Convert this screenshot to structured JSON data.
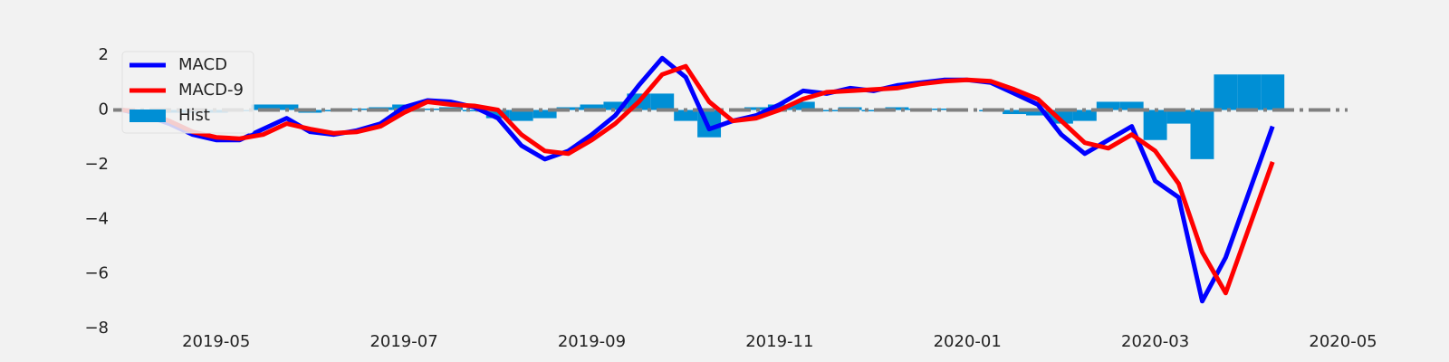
{
  "chart_data": {
    "type": "line",
    "categories": [
      null,
      null,
      null,
      null,
      "2019-05",
      null,
      null,
      null,
      null,
      null,
      null,
      null,
      "2019-07",
      null,
      null,
      null,
      null,
      null,
      null,
      null,
      "2019-09",
      null,
      null,
      null,
      null,
      null,
      null,
      null,
      "2019-11",
      null,
      null,
      null,
      null,
      null,
      null,
      null,
      "2020-01",
      null,
      null,
      null,
      null,
      null,
      null,
      null,
      "2020-03",
      null,
      null,
      null,
      null,
      null,
      null,
      null,
      "2020-05"
    ],
    "series": [
      {
        "name": "MACD",
        "color": "#0000ff",
        "kind": "line",
        "values": [
          0.0,
          -0.2,
          -0.5,
          -0.9,
          -1.1,
          -1.1,
          -0.7,
          -0.3,
          -0.8,
          -0.9,
          -0.75,
          -0.5,
          0.1,
          0.35,
          0.3,
          0.1,
          -0.3,
          -1.3,
          -1.8,
          -1.5,
          -0.9,
          -0.2,
          0.9,
          1.9,
          1.2,
          -0.7,
          -0.4,
          -0.2,
          0.2,
          0.7,
          0.6,
          0.8,
          0.7,
          0.9,
          1.0,
          1.1,
          1.1,
          1.0,
          0.6,
          0.2,
          -0.9,
          -1.6,
          -1.1,
          -0.6,
          -2.6,
          -3.2,
          -7.0,
          -5.4,
          -3.0,
          -0.6,
          null,
          null,
          null
        ]
      },
      {
        "name": "MACD-9",
        "color": "#ff0000",
        "kind": "line",
        "values": [
          0.0,
          -0.1,
          -0.4,
          -0.8,
          -1.0,
          -1.05,
          -0.9,
          -0.5,
          -0.7,
          -0.85,
          -0.8,
          -0.6,
          -0.1,
          0.3,
          0.2,
          0.15,
          0.0,
          -0.9,
          -1.5,
          -1.6,
          -1.1,
          -0.5,
          0.3,
          1.3,
          1.6,
          0.3,
          -0.4,
          -0.3,
          0.0,
          0.4,
          0.65,
          0.7,
          0.75,
          0.8,
          0.95,
          1.05,
          1.1,
          1.05,
          0.75,
          0.4,
          -0.4,
          -1.2,
          -1.4,
          -0.9,
          -1.5,
          -2.7,
          -5.2,
          -6.7,
          -4.3,
          -1.9,
          null,
          null,
          null
        ]
      },
      {
        "name": "Hist",
        "color": "#008fd5",
        "kind": "bar",
        "values": [
          0.0,
          -0.1,
          -0.1,
          -0.1,
          -0.1,
          -0.05,
          0.2,
          0.2,
          -0.1,
          -0.05,
          0.05,
          0.1,
          0.2,
          0.05,
          0.1,
          -0.05,
          -0.3,
          -0.4,
          -0.3,
          0.1,
          0.2,
          0.3,
          0.6,
          0.6,
          -0.4,
          -1.0,
          0.0,
          0.1,
          0.2,
          0.3,
          -0.05,
          0.1,
          -0.05,
          0.1,
          0.05,
          0.05,
          0.0,
          -0.05,
          -0.15,
          -0.2,
          -0.5,
          -0.4,
          0.3,
          0.3,
          -1.1,
          -0.5,
          -1.8,
          1.3,
          1.3,
          1.3,
          null,
          null,
          null
        ]
      }
    ],
    "ylim": [
      -8,
      2.8
    ],
    "yticks": [
      {
        "value": -8,
        "label": "−8"
      },
      {
        "value": -6,
        "label": "−6"
      },
      {
        "value": -4,
        "label": "−4"
      },
      {
        "value": -2,
        "label": "−2"
      },
      0,
      2
    ],
    "hline": 0,
    "hline_color": "#808080",
    "grid": false,
    "legend": "upper left"
  }
}
